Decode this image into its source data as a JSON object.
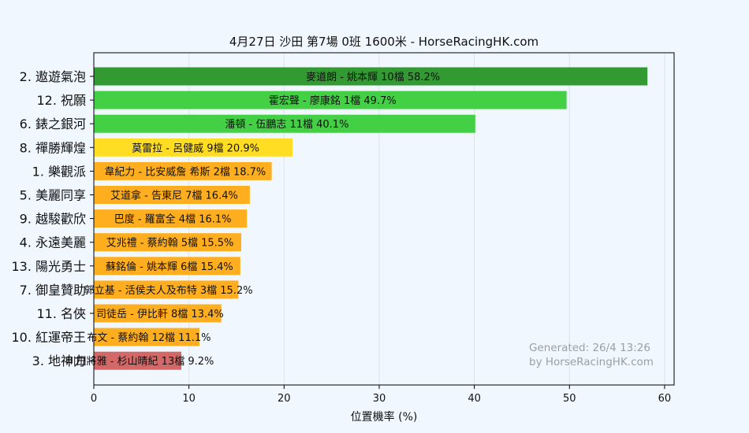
{
  "chart_data": {
    "type": "bar",
    "orientation": "horizontal",
    "title": "4月27日  沙田  第7場  0班  1600米 - HorseRacingHK.com",
    "xlabel": "位置機率 (%)",
    "ylabel": "",
    "xlim": [
      0,
      61
    ],
    "xticks": [
      0,
      10,
      20,
      30,
      40,
      50,
      60
    ],
    "grid": "vertical",
    "categories": [
      "2. 遨遊氣泡",
      "12. 祝願",
      "6. 錶之銀河",
      "8. 禪勝輝煌",
      "1. 樂觀派",
      "5. 美麗同享",
      "9. 越駿歡欣",
      "4. 永遠美麗",
      "13. 陽光勇士",
      "7. 御皇贊助",
      "11. 名俠",
      "10. 紅運帝王",
      "3. 地神力"
    ],
    "values": [
      58.2,
      49.7,
      40.1,
      20.9,
      18.7,
      16.4,
      16.1,
      15.5,
      15.4,
      15.2,
      13.4,
      11.1,
      9.2
    ],
    "bar_labels": [
      "麥道朗 - 姚本輝 10檔  58.2%",
      "霍宏聲 - 廖康銘 1檔  49.7%",
      "潘頓 - 伍鵬志 11檔  40.1%",
      "莫雷拉 - 呂健威 9檔  20.9%",
      "韋紀力 - 比安威詹 希斯 2檔  18.7%",
      "艾道拿 - 告東尼 7檔  16.4%",
      "巴度 - 羅富全 4檔  16.1%",
      "艾兆禮 - 蔡約翰 5檔  15.5%",
      "蘇銘倫 - 姚本輝 6檔  15.4%",
      "郭立基 - 活侯夫人及布特 3檔  15.2%",
      "司徒岳 - 伊比軒 8檔  13.4%",
      "布文 - 蔡約翰 12檔  11.1%",
      "川田將雅 - 杉山晴紀 13檔  9.2%"
    ],
    "colors": [
      "#339933",
      "#44d044",
      "#44d044",
      "#ffdd22",
      "#ffae1f",
      "#ffae1f",
      "#ffae1f",
      "#ffae1f",
      "#ffae1f",
      "#ffae1f",
      "#ffae1f",
      "#ffae1f",
      "#d26868"
    ],
    "watermark": [
      "Generated: 26/4 13:26",
      "by HorseRacingHK.com"
    ]
  }
}
